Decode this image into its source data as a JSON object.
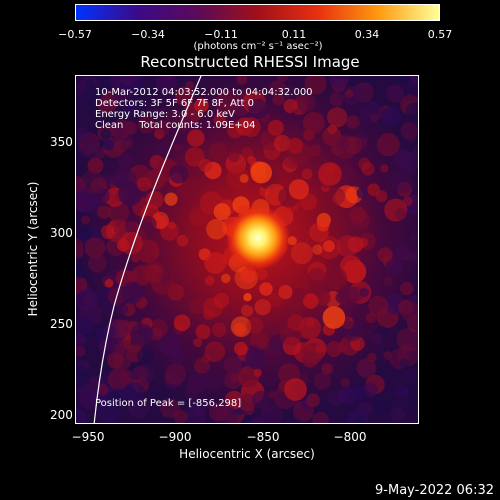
{
  "colorbar": {
    "ticks": [
      "−0.57",
      "−0.34",
      "−0.11",
      "0.11",
      "0.34",
      "0.57"
    ],
    "unit": "(photons cm⁻² s⁻¹ asec⁻²)",
    "stops": [
      "#0033ff",
      "#3b0a8a",
      "#5a0a5a",
      "#a0101a",
      "#e83010",
      "#ff9a10",
      "#ffff99"
    ]
  },
  "title": "Reconstructed RHESSI Image",
  "info": {
    "line1": "10-Mar-2012 04:03:52.000 to 04:04:32.000",
    "line2": "Detectors: 3F 5F 6F 7F 8F, Att 0",
    "line3": "Energy Range: 3.0 - 6.0 keV",
    "line4": "Clean     Total counts: 1.09E+04",
    "peak": "Position of Peak = [-856,298]"
  },
  "axes": {
    "xlabel": "Heliocentric X (arcsec)",
    "ylabel": "Heliocentric Y (arcsec)",
    "xticks": [
      "−950",
      "−900",
      "−850",
      "−800"
    ],
    "yticks": [
      "350",
      "300",
      "250",
      "200"
    ],
    "xlim": [
      -952,
      -788
    ],
    "ylim": [
      195,
      382
    ]
  },
  "timestamp": "9-May-2022 06:32"
}
